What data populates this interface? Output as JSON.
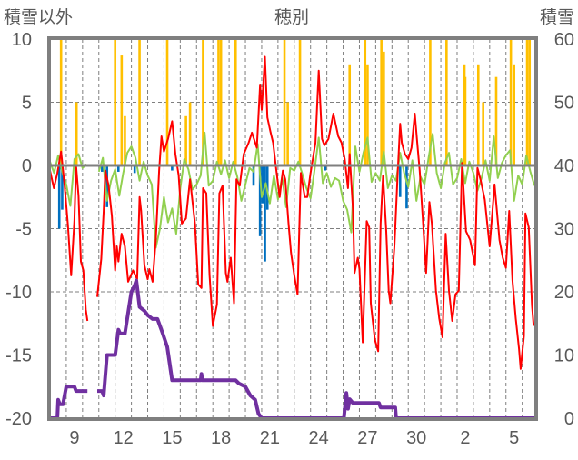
{
  "chart_data": {
    "type": "line",
    "title": "穂別",
    "ylabel_left": "積雪以外",
    "ylabel_right": "積雪",
    "x_unit": "days since Dec 8 00:00",
    "xlim": [
      0,
      29.8
    ],
    "ylim_left": [
      -20,
      10
    ],
    "ylim_right": [
      0,
      60
    ],
    "yticks_left": [
      10,
      5,
      0,
      -5,
      -10,
      -15,
      -20
    ],
    "yticks_left_labels": [
      "10",
      "5",
      "0",
      "-5",
      "-10",
      "-15",
      "-20"
    ],
    "yticks_right": [
      60,
      50,
      40,
      30,
      20,
      10,
      0
    ],
    "yticks_right_labels": [
      "60",
      "50",
      "40",
      "30",
      "20",
      "10",
      "0"
    ],
    "xticks": [
      1.5,
      4.5,
      7.5,
      10.5,
      13.5,
      16.5,
      19.5,
      22.5,
      25.5,
      28.5
    ],
    "xtick_labels": [
      "9",
      "12",
      "15",
      "18",
      "21",
      "24",
      "27",
      "30",
      "2",
      "5"
    ],
    "grid": true,
    "colors": {
      "red": "#FF0000",
      "green": "#92D050",
      "blue": "#0070C0",
      "yellow": "#FFC000",
      "purple": "#7030A0",
      "axis": "#7F7F7F",
      "grid": "#7F7F7F"
    },
    "series": [
      {
        "name": "yellow-bars",
        "type": "bar",
        "axis": "left",
        "color": "#FFC000",
        "points": [
          [
            0.68,
            10
          ],
          [
            1.63,
            5
          ],
          [
            4.0,
            10
          ],
          [
            4.4,
            8.7
          ],
          [
            4.6,
            3.9
          ],
          [
            5.5,
            10
          ],
          [
            7.2,
            10
          ],
          [
            8.35,
            3.9
          ],
          [
            8.6,
            5
          ],
          [
            9.4,
            10
          ],
          [
            10.35,
            10
          ],
          [
            10.5,
            10
          ],
          [
            11.4,
            10
          ],
          [
            14.4,
            10
          ],
          [
            14.6,
            5
          ],
          [
            15.35,
            10
          ],
          [
            18.4,
            8
          ],
          [
            19.35,
            10
          ],
          [
            19.5,
            8
          ],
          [
            20.35,
            10
          ],
          [
            20.5,
            9
          ],
          [
            23.35,
            10
          ],
          [
            24.35,
            10
          ],
          [
            25.45,
            8
          ],
          [
            25.5,
            7
          ],
          [
            26.3,
            8
          ],
          [
            26.6,
            5
          ],
          [
            27.4,
            7
          ],
          [
            28.3,
            10
          ],
          [
            28.5,
            8
          ],
          [
            29.3,
            10
          ],
          [
            29.45,
            10
          ]
        ]
      },
      {
        "name": "blue-bars",
        "type": "bar",
        "axis": "left",
        "color": "#0070C0",
        "points": [
          [
            0.57,
            -5
          ],
          [
            0.75,
            -3.5
          ],
          [
            3.2,
            -0.5
          ],
          [
            3.5,
            -3.3
          ],
          [
            4.2,
            -0.5
          ],
          [
            5.2,
            -0.6
          ],
          [
            7.5,
            -0.4
          ],
          [
            12.5,
            -1.6
          ],
          [
            12.9,
            -5.6
          ],
          [
            13.05,
            -3
          ],
          [
            13.2,
            -7.6
          ],
          [
            13.35,
            -3.5
          ],
          [
            16.9,
            -0.4
          ],
          [
            21.5,
            -2.5
          ],
          [
            21.9,
            -3.4
          ]
        ]
      },
      {
        "name": "green-line",
        "type": "line",
        "axis": "left",
        "color": "#92D050",
        "step": 0.25,
        "values": [
          0.3,
          -0.6,
          0.8,
          -0.5,
          -1.5,
          -3.2,
          0.5,
          0.9,
          -0.2,
          0.1,
          null,
          null,
          -0.5,
          0.6,
          -2.8,
          -1.2,
          -0.3,
          -2.4,
          -0.6,
          1.0,
          1.5,
          0.6,
          -1.2,
          0.3,
          -0.8,
          -1.5,
          -6.5,
          -5.0,
          -2.5,
          -4.5,
          -3.4,
          -5.4,
          -1.8,
          0.5,
          -0.3,
          -1.9,
          -1.5,
          -0.8,
          2.6,
          -1.6,
          -1.2,
          0.3,
          -0.7,
          0.4,
          -1.0,
          0.3,
          -0.9,
          -2.8,
          -1.5,
          -0.2,
          -0.5,
          1.7,
          -2.5,
          -1.4,
          -3.0,
          -0.8,
          -2.7,
          -0.9,
          -3.3,
          -0.2,
          -0.4,
          0.3,
          -0.7,
          -1.8,
          -2.6,
          -0.3,
          2.2,
          -1.4,
          -0.6,
          -1.7,
          -1.0,
          -1.2,
          -2.8,
          -3.5,
          -5.3,
          1.5,
          -0.5,
          1.0,
          2.2,
          -1.3,
          -0.6,
          -1.2,
          1.1,
          -1.8,
          -0.8,
          -1.2,
          1.0,
          -0.6,
          -1.7,
          0.4,
          -2.8,
          -0.9,
          -1.5,
          0.6,
          2.5,
          -0.6,
          -1.8,
          0.2,
          1.0,
          -1.5,
          -1.0,
          0.5,
          -1.4,
          0.3,
          -0.6,
          -2.0,
          -1.0,
          0.4,
          -1.2,
          2.3,
          -1.0,
          0.2,
          0.8,
          1.2,
          -2.8,
          -0.8,
          -1.5,
          0.8,
          -0.5,
          -1.6
        ]
      },
      {
        "name": "red-line",
        "type": "line",
        "axis": "left",
        "color": "#FF0000",
        "points": [
          [
            0,
            -0.4
          ],
          [
            0.24,
            -1.8
          ],
          [
            0.45,
            -0.6
          ],
          [
            0.68,
            1.1
          ],
          [
            0.9,
            -1.6
          ],
          [
            1.1,
            -4.7
          ],
          [
            1.3,
            -8.7
          ],
          [
            1.5,
            -4.3
          ],
          [
            1.6,
            0
          ],
          [
            1.75,
            -2.4
          ],
          [
            1.9,
            -7.6
          ],
          [
            2.05,
            -8.3
          ],
          [
            2.2,
            -11.4
          ],
          [
            2.3,
            -12.3
          ],
          null,
          [
            2.9,
            -10.4
          ],
          [
            3.15,
            -7.4
          ],
          [
            3.3,
            -3.6
          ],
          [
            3.4,
            -0.4
          ],
          [
            3.6,
            -1.6
          ],
          [
            3.8,
            -4
          ],
          [
            4.0,
            -8.3
          ],
          [
            4.1,
            -6.4
          ],
          [
            4.2,
            -7.6
          ],
          [
            4.4,
            -5.4
          ],
          [
            4.6,
            -6.4
          ],
          [
            4.8,
            -9.2
          ],
          [
            5.1,
            -8.3
          ],
          [
            5.35,
            -9
          ],
          [
            5.5,
            -2.5
          ],
          [
            5.6,
            -3.6
          ],
          [
            5.8,
            -7.9
          ],
          [
            6.0,
            -9
          ],
          [
            6.1,
            -8.2
          ],
          [
            6.3,
            -9.2
          ],
          [
            6.5,
            -5.8
          ],
          [
            6.7,
            -0.4
          ],
          [
            6.85,
            2.3
          ],
          [
            7.0,
            1.1
          ],
          [
            7.25,
            2.1
          ],
          [
            7.5,
            3.5
          ],
          [
            7.7,
            0.9
          ],
          [
            7.9,
            -0.8
          ],
          [
            8.1,
            -4.6
          ],
          [
            8.35,
            -4.2
          ],
          [
            8.6,
            -1.1
          ],
          [
            8.9,
            -4.6
          ],
          [
            9.1,
            -9.4
          ],
          [
            9.3,
            -9.7
          ],
          [
            9.4,
            -1.8
          ],
          [
            9.6,
            -2.2
          ],
          [
            9.8,
            -8.7
          ],
          [
            10.0,
            -12.7
          ],
          [
            10.25,
            -11
          ],
          [
            10.4,
            -2.2
          ],
          [
            10.6,
            -1.6
          ],
          [
            10.8,
            -8.5
          ],
          [
            10.9,
            -9.2
          ],
          [
            11.1,
            -7.3
          ],
          [
            11.3,
            -10.9
          ],
          [
            11.45,
            -1.1
          ],
          [
            11.65,
            -1.6
          ],
          [
            11.9,
            0.9
          ],
          [
            12.2,
            1.8
          ],
          [
            12.4,
            2.6
          ],
          [
            12.7,
            1.4
          ],
          [
            12.9,
            6.4
          ],
          [
            13.0,
            4.4
          ],
          [
            13.2,
            8.6
          ],
          [
            13.35,
            3.8
          ],
          [
            13.55,
            2.6
          ],
          [
            13.7,
            1.8
          ],
          [
            13.9,
            -0.4
          ],
          [
            14.1,
            -2.5
          ],
          [
            14.3,
            -0.4
          ],
          [
            14.45,
            -1.1
          ],
          [
            14.65,
            -4.6
          ],
          [
            14.8,
            -6.9
          ],
          [
            15.0,
            -8.7
          ],
          [
            15.2,
            -10.2
          ],
          [
            15.4,
            -0.6
          ],
          [
            15.65,
            -2.5
          ],
          [
            15.8,
            -2.5
          ],
          [
            16.0,
            -0.6
          ],
          [
            16.3,
            1.8
          ],
          [
            16.5,
            7.5
          ],
          [
            16.7,
            2.1
          ],
          [
            16.85,
            1.6
          ],
          [
            17.1,
            2.1
          ],
          [
            17.4,
            4.1
          ],
          [
            17.7,
            2.3
          ],
          [
            17.9,
            1.8
          ],
          [
            18.1,
            0.5
          ],
          [
            18.3,
            -1.8
          ],
          [
            18.4,
            0.9
          ],
          [
            18.6,
            -3.4
          ],
          [
            18.7,
            -8.5
          ],
          [
            18.9,
            -7.3
          ],
          [
            19.0,
            -8.2
          ],
          [
            19.2,
            -14
          ],
          [
            19.45,
            -4.4
          ],
          [
            19.6,
            -4.9
          ],
          [
            19.7,
            -10.9
          ],
          [
            19.95,
            -13.8
          ],
          [
            20.15,
            -14.7
          ],
          [
            20.3,
            -4.6
          ],
          [
            20.45,
            -0.8
          ],
          [
            20.65,
            -5.2
          ],
          [
            20.8,
            -9.9
          ],
          [
            20.9,
            -10.9
          ],
          [
            21.15,
            -6.4
          ],
          [
            21.35,
            -0.6
          ],
          [
            21.5,
            3.3
          ],
          [
            21.6,
            1.8
          ],
          [
            21.8,
            0.9
          ],
          [
            22.0,
            0.5
          ],
          [
            22.2,
            1.4
          ],
          [
            22.4,
            4.1
          ],
          [
            22.55,
            1.8
          ],
          [
            22.7,
            -0.4
          ],
          [
            22.9,
            -4.4
          ],
          [
            23.1,
            -8.5
          ],
          [
            23.3,
            -2.9
          ],
          [
            23.45,
            -4.6
          ],
          [
            23.7,
            -9.9
          ],
          [
            23.9,
            -12.1
          ],
          [
            24.1,
            -13.6
          ],
          [
            24.3,
            -5.4
          ],
          [
            24.5,
            -9.9
          ],
          [
            24.7,
            -12.3
          ],
          [
            24.9,
            -10.2
          ],
          [
            25.1,
            -9.9
          ],
          [
            25.3,
            0.2
          ],
          [
            25.55,
            -5.2
          ],
          [
            25.8,
            -5.9
          ],
          [
            26.1,
            -7.9
          ],
          [
            26.25,
            -0.2
          ],
          [
            26.45,
            -1.2
          ],
          [
            26.7,
            -2.7
          ],
          [
            27.0,
            -6.4
          ],
          [
            27.3,
            -1.5
          ],
          [
            27.6,
            -5.9
          ],
          [
            27.8,
            -7.3
          ],
          [
            28.0,
            -8.1
          ],
          [
            28.2,
            -3.6
          ],
          [
            28.4,
            -9.1
          ],
          [
            28.6,
            -12.1
          ],
          [
            28.8,
            -14.5
          ],
          [
            28.9,
            -16.1
          ],
          [
            29.1,
            -13.5
          ],
          [
            29.2,
            -3.8
          ],
          [
            29.4,
            -4.9
          ],
          [
            29.6,
            -11.1
          ],
          [
            29.7,
            -12.7
          ]
        ]
      },
      {
        "name": "purple-line",
        "type": "line",
        "axis": "right",
        "color": "#7030A0",
        "points": [
          [
            0,
            0
          ],
          [
            0.45,
            0
          ],
          [
            0.5,
            2.9
          ],
          [
            0.6,
            2.2
          ],
          [
            0.8,
            2.2
          ],
          [
            1.0,
            5
          ],
          [
            1.5,
            5
          ],
          [
            1.6,
            4.3
          ],
          [
            2.3,
            4.3
          ],
          null,
          [
            2.9,
            4.3
          ],
          [
            3.2,
            4.3
          ],
          [
            3.3,
            3.6
          ],
          [
            3.5,
            10
          ],
          [
            4.0,
            10
          ],
          [
            4.2,
            14
          ],
          [
            4.3,
            13.4
          ],
          [
            4.6,
            13.4
          ],
          [
            5.0,
            20
          ],
          [
            5.2,
            21
          ],
          [
            5.3,
            21.8
          ],
          [
            5.5,
            17.6
          ],
          [
            5.8,
            17
          ],
          [
            6.0,
            16.3
          ],
          [
            6.3,
            15.7
          ],
          [
            6.6,
            15.7
          ],
          [
            6.9,
            13.6
          ],
          [
            7.2,
            11.3
          ],
          [
            7.5,
            6
          ],
          [
            9.25,
            6
          ],
          [
            9.3,
            7
          ],
          [
            9.35,
            6
          ],
          [
            11.4,
            6
          ],
          [
            11.6,
            5.5
          ],
          [
            12.0,
            5
          ],
          [
            12.3,
            3.6
          ],
          [
            12.6,
            2.9
          ],
          [
            12.8,
            0.7
          ],
          [
            13.0,
            0
          ],
          [
            18.05,
            0
          ],
          [
            18.2,
            4
          ],
          [
            18.3,
            1.5
          ],
          [
            18.4,
            3
          ],
          [
            18.6,
            2.4
          ],
          [
            20.2,
            2.4
          ],
          [
            20.3,
            1.7
          ],
          [
            21.2,
            1.7
          ],
          [
            21.25,
            0
          ],
          [
            29.8,
            0
          ]
        ]
      }
    ]
  }
}
